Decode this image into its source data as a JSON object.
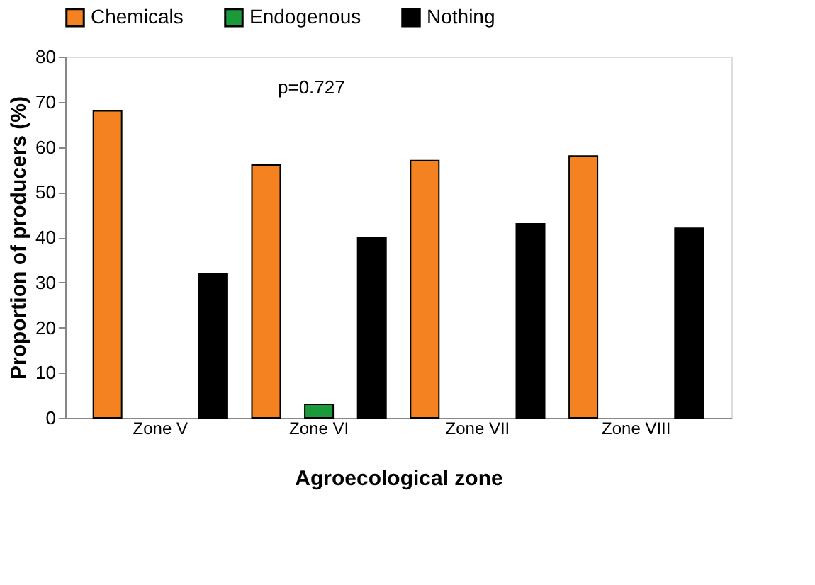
{
  "chart_data": {
    "type": "bar",
    "xlabel": "Agroecological zone",
    "ylabel": "Proportion of producers (%)",
    "categories": [
      "Zone V",
      "Zone VI",
      "Zone VII",
      "Zone VIII"
    ],
    "series": [
      {
        "name": "Chemicals",
        "color": "#f58220",
        "values": [
          68,
          56,
          57,
          58
        ]
      },
      {
        "name": "Endogenous",
        "color": "#1a9a3a",
        "values": [
          null,
          3,
          null,
          null
        ]
      },
      {
        "name": "Nothing",
        "color": "#000000",
        "values": [
          32,
          40,
          43,
          42
        ]
      }
    ],
    "ylim": [
      0,
      80
    ],
    "yticks": [
      0,
      10,
      20,
      30,
      40,
      50,
      60,
      70,
      80
    ],
    "grid": false,
    "legend": "top",
    "annotations": [
      "p=0.727"
    ]
  }
}
